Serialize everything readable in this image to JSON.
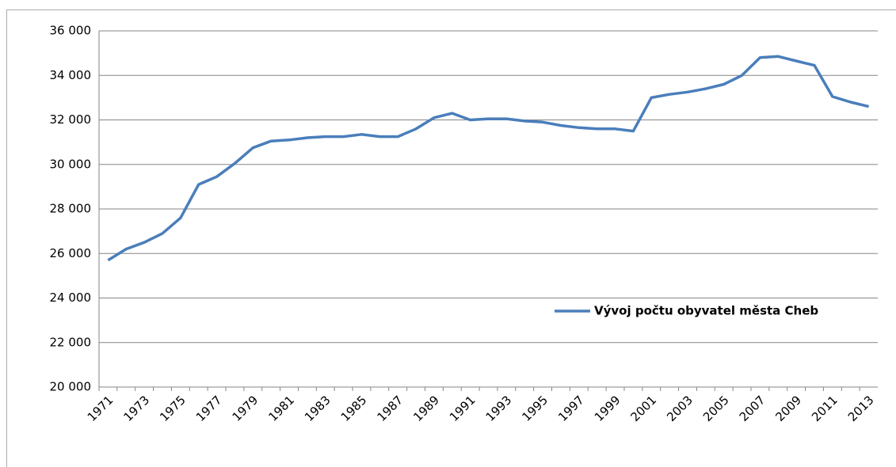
{
  "chart_data": {
    "type": "line",
    "categories": [
      "1971",
      null,
      "1973",
      null,
      "1975",
      null,
      "1977",
      null,
      "1979",
      null,
      "1981",
      null,
      "1983",
      null,
      "1985",
      null,
      "1987",
      null,
      "1989",
      null,
      "1991",
      null,
      "1993",
      null,
      "1995",
      null,
      "1997",
      null,
      "1999",
      null,
      "2001",
      null,
      "2003",
      null,
      "2005",
      null,
      "2007",
      null,
      "2009",
      null,
      "2011",
      null,
      "2013"
    ],
    "series": [
      {
        "name": "Vývoj počtu obyvatel města Cheb",
        "color": "#4a7ebb",
        "values": [
          25700,
          26200,
          26500,
          26900,
          27600,
          29100,
          29450,
          30050,
          30750,
          31050,
          31100,
          31200,
          31250,
          31250,
          31350,
          31250,
          31250,
          31600,
          32100,
          32300,
          32000,
          32050,
          32050,
          31950,
          31900,
          31750,
          31650,
          31600,
          31600,
          31500,
          33000,
          33150,
          33250,
          33400,
          33600,
          34000,
          34800,
          34850,
          34650,
          34450,
          33050,
          32800,
          32600
        ]
      }
    ],
    "ylim": [
      20000,
      36000
    ],
    "yticks": [
      {
        "value": 20000,
        "label": "20 000"
      },
      {
        "value": 22000,
        "label": "22 000"
      },
      {
        "value": 24000,
        "label": "24 000"
      },
      {
        "value": 26000,
        "label": "26 000"
      },
      {
        "value": 28000,
        "label": "28 000"
      },
      {
        "value": 30000,
        "label": "30 000"
      },
      {
        "value": 32000,
        "label": "32 000"
      },
      {
        "value": 34000,
        "label": "34 000"
      },
      {
        "value": 36000,
        "label": "36 000"
      }
    ],
    "grid": true,
    "legend": "right"
  }
}
